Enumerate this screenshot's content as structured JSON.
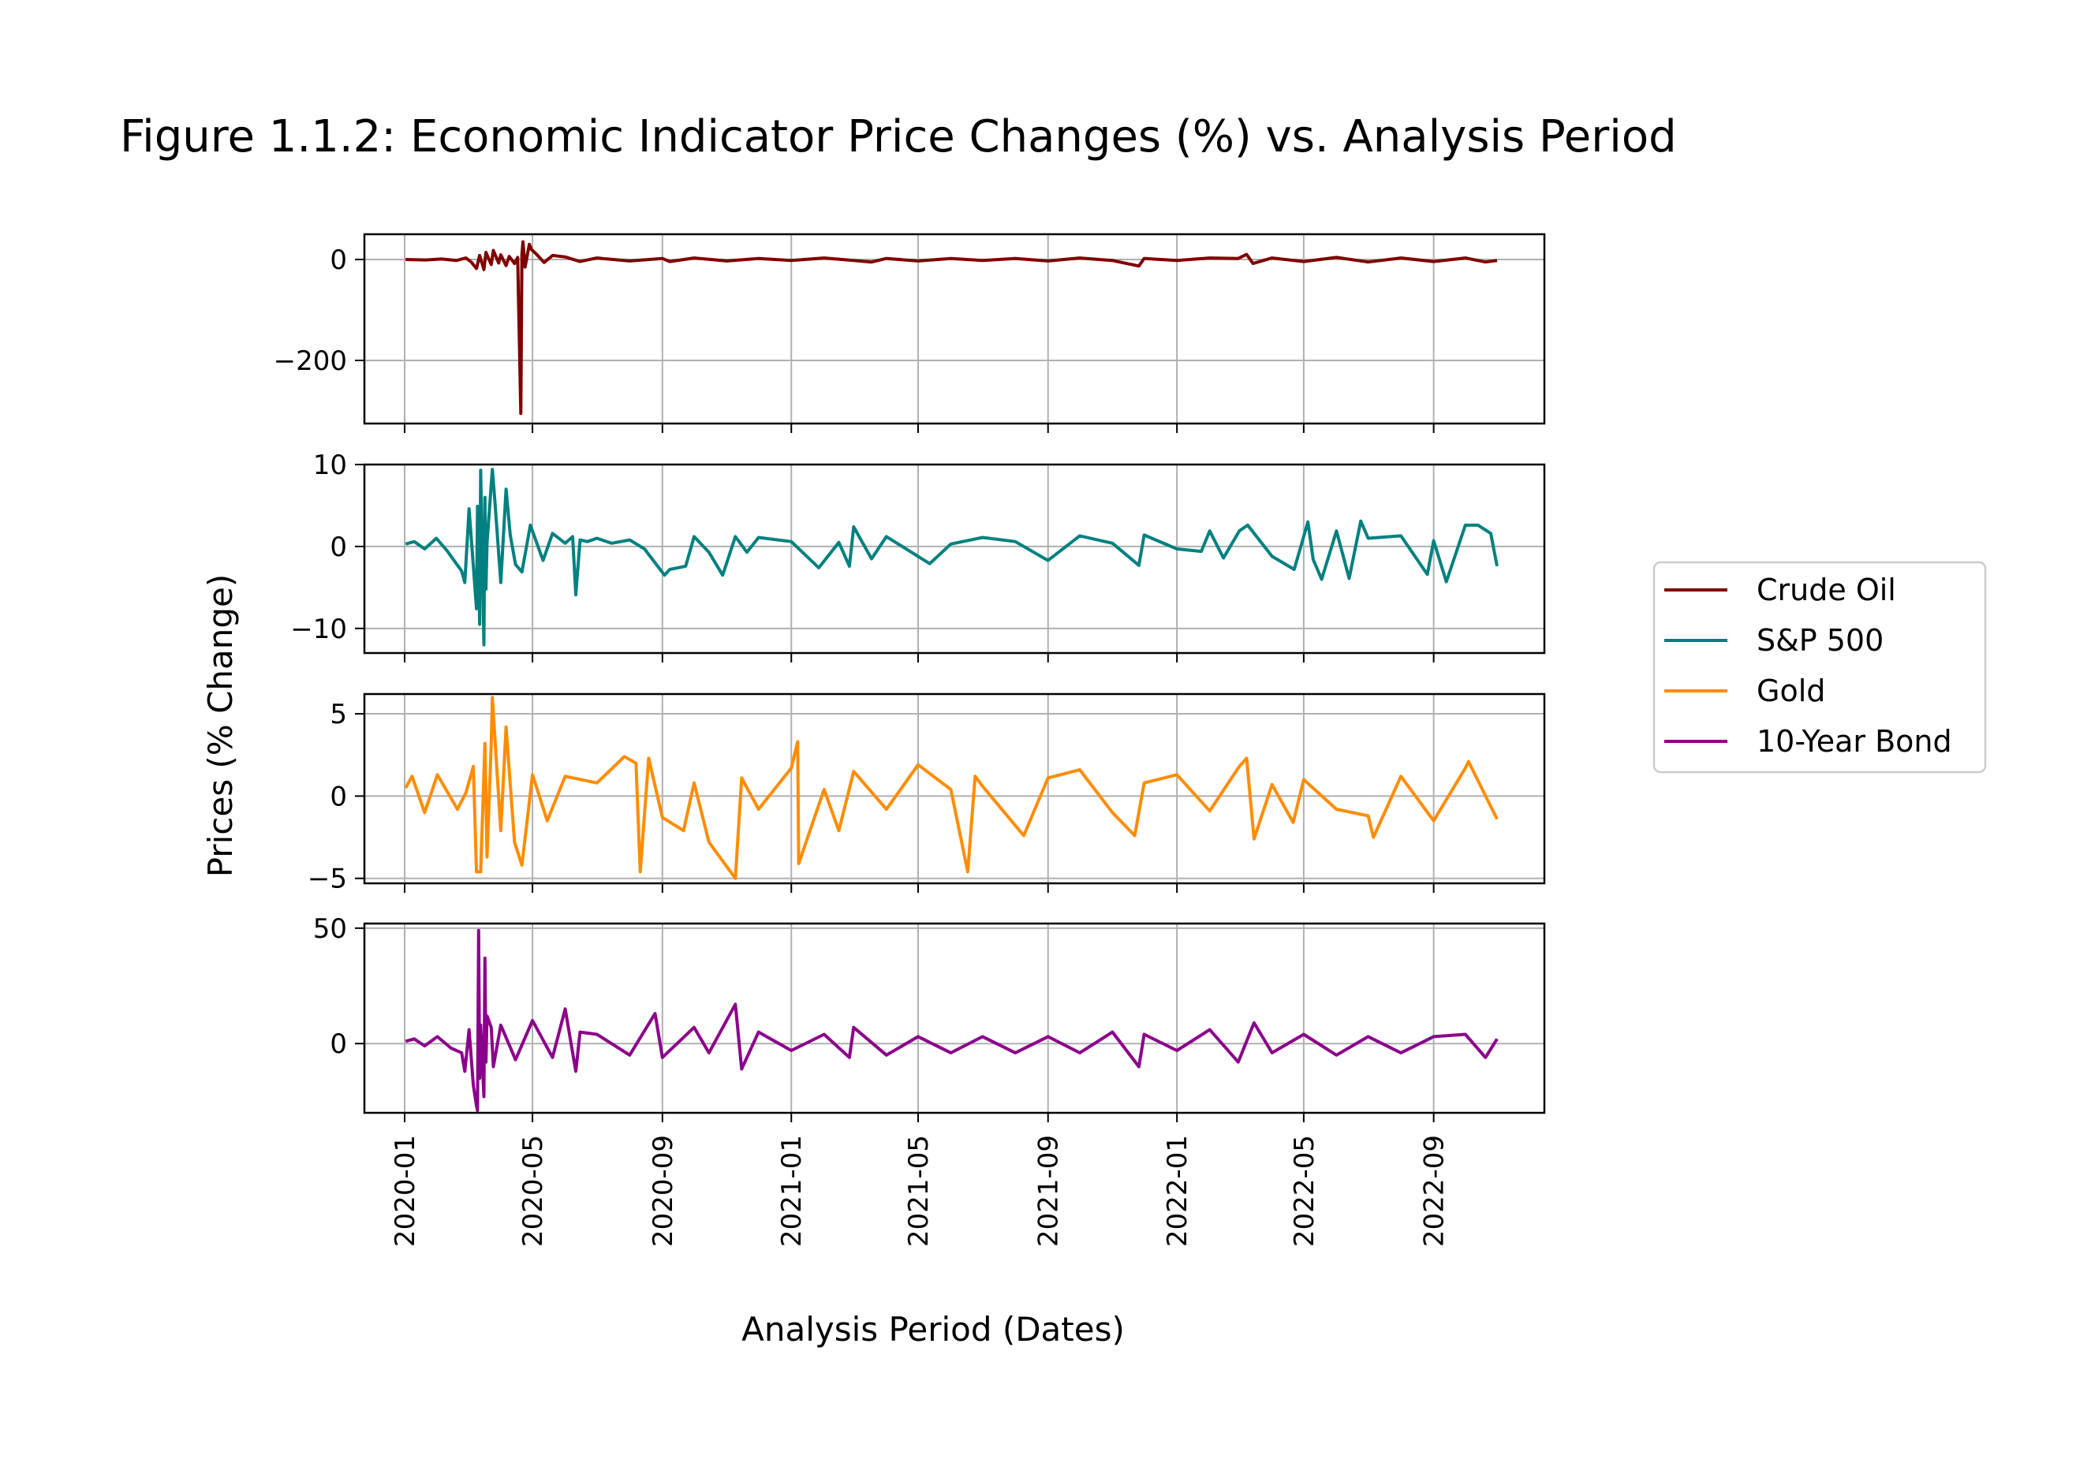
{
  "chart_data": {
    "type": "line",
    "title": "Figure 1.1.2: Economic Indicator Price Changes (%) vs. Analysis Period",
    "xlabel": "Analysis Period (Dates)",
    "ylabel": "Prices (% Change)",
    "x_range": [
      "2020-01-01",
      "2022-10-31"
    ],
    "x_ticks": [
      "2020-01",
      "2020-05",
      "2020-09",
      "2021-01",
      "2021-05",
      "2021-09",
      "2022-01",
      "2022-05",
      "2022-09"
    ],
    "grid": true,
    "legend_position": "right",
    "sharex": true,
    "panels": [
      {
        "name": "Crude Oil",
        "color": "#800000",
        "ylim": [
          -325,
          50
        ],
        "yticks": [
          0,
          -200
        ],
        "ytick_labels": [
          "0",
          "−200"
        ],
        "series": [
          {
            "name": "Crude Oil",
            "x": [
              "2020-01-02",
              "2020-01-21",
              "2020-02-05",
              "2020-02-19",
              "2020-02-28",
              "2020-03-04",
              "2020-03-09",
              "2020-03-12",
              "2020-03-16",
              "2020-03-18",
              "2020-03-23",
              "2020-03-25",
              "2020-03-30",
              "2020-04-01",
              "2020-04-06",
              "2020-04-09",
              "2020-04-14",
              "2020-04-17",
              "2020-04-20",
              "2020-04-21",
              "2020-04-22",
              "2020-04-24",
              "2020-04-28",
              "2020-04-30",
              "2020-05-05",
              "2020-05-12",
              "2020-05-20",
              "2020-06-01",
              "2020-06-15",
              "2020-07-01",
              "2020-08-01",
              "2020-09-01",
              "2020-09-08",
              "2020-10-01",
              "2020-11-01",
              "2020-12-01",
              "2021-01-01",
              "2021-02-01",
              "2021-03-01",
              "2021-03-18",
              "2021-04-01",
              "2021-05-01",
              "2021-06-01",
              "2021-07-01",
              "2021-08-01",
              "2021-09-01",
              "2021-10-01",
              "2021-11-01",
              "2021-11-26",
              "2021-12-01",
              "2022-01-01",
              "2022-02-01",
              "2022-02-28",
              "2022-03-08",
              "2022-03-14",
              "2022-04-01",
              "2022-05-01",
              "2022-06-01",
              "2022-07-01",
              "2022-08-01",
              "2022-09-01",
              "2022-10-01",
              "2022-10-20",
              "2022-10-31"
            ],
            "values": [
              0,
              -1,
              1,
              -2,
              3,
              -5,
              -18,
              8,
              -20,
              14,
              -10,
              18,
              -7,
              9,
              -12,
              6,
              -8,
              4,
              -305,
              10,
              35,
              -15,
              30,
              20,
              10,
              -6,
              8,
              5,
              -4,
              3,
              -3,
              2,
              -4,
              3,
              -3,
              2,
              -2,
              3,
              -2,
              -5,
              2,
              -3,
              2,
              -2,
              2,
              -3,
              3,
              -2,
              -13,
              2,
              -2,
              3,
              2,
              10,
              -8,
              3,
              -4,
              4,
              -5,
              3,
              -4,
              3,
              -5,
              -2
            ]
          }
        ]
      },
      {
        "name": "S&P 500",
        "color": "#008080",
        "ylim": [
          -13,
          10
        ],
        "yticks": [
          10,
          0,
          -10
        ],
        "ytick_labels": [
          "10",
          "0",
          "−10"
        ],
        "series": [
          {
            "name": "S&P 500",
            "x": [
              "2020-01-02",
              "2020-01-10",
              "2020-01-20",
              "2020-01-31",
              "2020-02-10",
              "2020-02-24",
              "2020-02-27",
              "2020-03-02",
              "2020-03-09",
              "2020-03-10",
              "2020-03-12",
              "2020-03-13",
              "2020-03-16",
              "2020-03-17",
              "2020-03-18",
              "2020-03-19",
              "2020-03-24",
              "2020-03-26",
              "2020-04-01",
              "2020-04-06",
              "2020-04-10",
              "2020-04-15",
              "2020-04-21",
              "2020-04-29",
              "2020-05-11",
              "2020-05-20",
              "2020-06-01",
              "2020-06-08",
              "2020-06-11",
              "2020-06-15",
              "2020-06-22",
              "2020-07-01",
              "2020-07-15",
              "2020-08-01",
              "2020-08-15",
              "2020-09-03",
              "2020-09-08",
              "2020-09-23",
              "2020-10-01",
              "2020-10-15",
              "2020-10-28",
              "2020-11-09",
              "2020-11-20",
              "2020-12-01",
              "2021-01-01",
              "2021-01-27",
              "2021-02-15",
              "2021-02-25",
              "2021-03-01",
              "2021-03-18",
              "2021-04-01",
              "2021-05-12",
              "2021-06-01",
              "2021-07-01",
              "2021-08-01",
              "2021-09-01",
              "2021-10-01",
              "2021-11-01",
              "2021-11-26",
              "2021-12-01",
              "2022-01-01",
              "2022-01-24",
              "2022-02-01",
              "2022-02-14",
              "2022-03-01",
              "2022-03-09",
              "2022-04-01",
              "2022-04-22",
              "2022-05-05",
              "2022-05-10",
              "2022-05-18",
              "2022-06-01",
              "2022-06-13",
              "2022-06-24",
              "2022-07-01",
              "2022-08-01",
              "2022-08-26",
              "2022-09-01",
              "2022-09-13",
              "2022-10-01",
              "2022-10-13",
              "2022-10-25",
              "2022-10-31"
            ],
            "values": [
              0.3,
              0.6,
              -0.3,
              1.0,
              -0.5,
              -3.0,
              -4.4,
              4.6,
              -7.6,
              4.9,
              -9.5,
              9.3,
              -12.0,
              6.0,
              -5.2,
              0.5,
              9.4,
              6.2,
              -4.4,
              7.0,
              1.4,
              -2.2,
              -3.1,
              2.6,
              -1.7,
              1.6,
              0.4,
              1.2,
              -5.9,
              0.8,
              0.6,
              1.0,
              0.4,
              0.8,
              -0.3,
              -3.5,
              -2.8,
              -2.4,
              1.2,
              -0.7,
              -3.5,
              1.2,
              -0.7,
              1.1,
              0.6,
              -2.6,
              0.5,
              -2.4,
              2.4,
              -1.5,
              1.2,
              -2.1,
              0.3,
              1.1,
              0.6,
              -1.7,
              1.3,
              0.4,
              -2.3,
              1.4,
              -0.3,
              -0.6,
              1.9,
              -1.4,
              1.9,
              2.6,
              -1.2,
              -2.8,
              3.0,
              -1.6,
              -4.0,
              1.9,
              -3.9,
              3.1,
              1.0,
              1.3,
              -3.4,
              0.7,
              -4.3,
              2.6,
              2.6,
              1.6,
              -2.4
            ]
          }
        ]
      },
      {
        "name": "Gold",
        "color": "#FF8C00",
        "ylim": [
          -5.3,
          6.2
        ],
        "yticks": [
          5,
          0,
          -5
        ],
        "ytick_labels": [
          "5",
          "0",
          "−5"
        ],
        "series": [
          {
            "name": "Gold",
            "x": [
              "2020-01-02",
              "2020-01-08",
              "2020-01-20",
              "2020-02-01",
              "2020-02-20",
              "2020-02-28",
              "2020-03-06",
              "2020-03-09",
              "2020-03-13",
              "2020-03-17",
              "2020-03-19",
              "2020-03-23",
              "2020-03-24",
              "2020-04-01",
              "2020-04-06",
              "2020-04-14",
              "2020-04-21",
              "2020-05-01",
              "2020-05-15",
              "2020-06-01",
              "2020-07-01",
              "2020-07-27",
              "2020-08-07",
              "2020-08-11",
              "2020-08-19",
              "2020-09-01",
              "2020-09-21",
              "2020-10-01",
              "2020-10-15",
              "2020-11-09",
              "2020-11-15",
              "2020-12-01",
              "2021-01-01",
              "2021-01-07",
              "2021-01-08",
              "2021-02-01",
              "2021-02-15",
              "2021-03-01",
              "2021-04-01",
              "2021-05-01",
              "2021-06-01",
              "2021-06-17",
              "2021-06-24",
              "2021-07-01",
              "2021-08-09",
              "2021-09-01",
              "2021-10-01",
              "2021-11-01",
              "2021-11-22",
              "2021-12-01",
              "2022-01-01",
              "2022-02-01",
              "2022-03-01",
              "2022-03-08",
              "2022-03-15",
              "2022-04-01",
              "2022-04-21",
              "2022-05-01",
              "2022-06-01",
              "2022-07-01",
              "2022-07-06",
              "2022-08-01",
              "2022-09-01",
              "2022-10-01",
              "2022-10-04",
              "2022-10-31"
            ],
            "values": [
              0.5,
              1.2,
              -1.0,
              1.3,
              -0.8,
              0.2,
              1.8,
              -4.6,
              -4.6,
              3.2,
              -3.7,
              3.2,
              6.0,
              -2.1,
              4.2,
              -2.8,
              -4.2,
              1.3,
              -1.5,
              1.2,
              0.8,
              2.4,
              2.0,
              -4.6,
              2.3,
              -1.3,
              -2.1,
              0.8,
              -2.8,
              -5.0,
              1.1,
              -0.8,
              1.7,
              3.3,
              -4.1,
              0.4,
              -2.1,
              1.5,
              -0.8,
              1.9,
              0.4,
              -4.6,
              1.2,
              0.6,
              -2.4,
              1.1,
              1.6,
              -1.0,
              -2.4,
              0.8,
              1.3,
              -0.9,
              1.8,
              2.3,
              -2.6,
              0.7,
              -1.6,
              1.0,
              -0.8,
              -1.2,
              -2.5,
              1.2,
              -1.5,
              1.7,
              2.1,
              -1.4
            ]
          }
        ]
      },
      {
        "name": "10-Year Bond",
        "color": "#8B008B",
        "ylim": [
          -30,
          52
        ],
        "yticks": [
          50,
          0
        ],
        "ytick_labels": [
          "50",
          "0"
        ],
        "series": [
          {
            "name": "10-Year Bond",
            "x": [
              "2020-01-02",
              "2020-01-10",
              "2020-01-20",
              "2020-02-01",
              "2020-02-14",
              "2020-02-24",
              "2020-02-27",
              "2020-03-02",
              "2020-03-06",
              "2020-03-09",
              "2020-03-10",
              "2020-03-11",
              "2020-03-12",
              "2020-03-13",
              "2020-03-16",
              "2020-03-17",
              "2020-03-18",
              "2020-03-19",
              "2020-03-23",
              "2020-03-25",
              "2020-04-01",
              "2020-04-15",
              "2020-05-01",
              "2020-05-20",
              "2020-06-01",
              "2020-06-11",
              "2020-06-15",
              "2020-07-01",
              "2020-08-01",
              "2020-08-25",
              "2020-09-01",
              "2020-10-01",
              "2020-10-15",
              "2020-11-09",
              "2020-11-15",
              "2020-12-01",
              "2021-01-01",
              "2021-02-01",
              "2021-02-25",
              "2021-03-01",
              "2021-04-01",
              "2021-05-01",
              "2021-06-01",
              "2021-07-01",
              "2021-08-01",
              "2021-09-01",
              "2021-10-01",
              "2021-11-01",
              "2021-11-26",
              "2021-12-01",
              "2022-01-01",
              "2022-02-01",
              "2022-02-28",
              "2022-03-15",
              "2022-04-01",
              "2022-05-01",
              "2022-06-01",
              "2022-07-01",
              "2022-08-01",
              "2022-09-01",
              "2022-10-01",
              "2022-10-20",
              "2022-10-31"
            ],
            "values": [
              1,
              2,
              -1,
              3,
              -2,
              -4,
              -12,
              6,
              -18,
              -27,
              -29,
              49,
              -15,
              8,
              -23,
              37,
              -8,
              12,
              7,
              -10,
              8,
              -7,
              10,
              -6,
              15,
              -12,
              5,
              4,
              -5,
              13,
              -6,
              7,
              -4,
              17,
              -11,
              5,
              -3,
              4,
              -6,
              7,
              -5,
              3,
              -4,
              3,
              -4,
              3,
              -4,
              5,
              -10,
              4,
              -3,
              6,
              -8,
              9,
              -4,
              4,
              -5,
              3,
              -4,
              3,
              4,
              -6,
              2
            ]
          }
        ]
      }
    ]
  }
}
